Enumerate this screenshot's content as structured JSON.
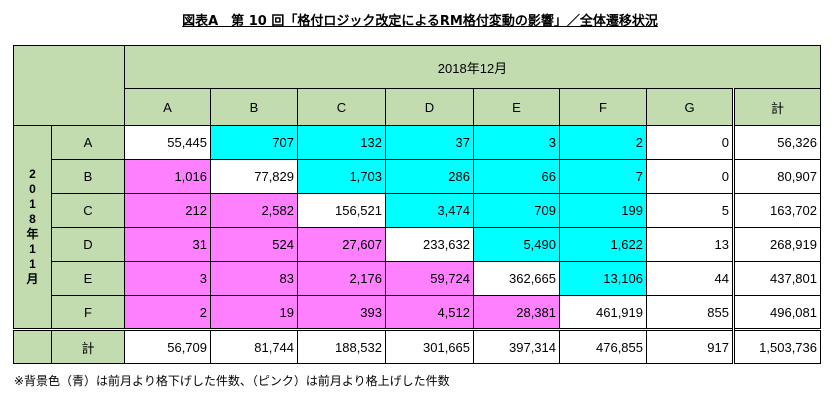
{
  "title": "図表A　第 10 回「格付ロジック改定によるRM格付変動の影響」／全体遷移状況",
  "header": {
    "period_col": "2018年12月",
    "period_row_chars": [
      "2",
      "0",
      "1",
      "8",
      "年",
      "1",
      "1",
      "月"
    ],
    "columns": [
      "A",
      "B",
      "C",
      "D",
      "E",
      "F",
      "G",
      "計"
    ]
  },
  "rows": [
    {
      "label": "A",
      "values": [
        "55,445",
        "707",
        "132",
        "37",
        "3",
        "2",
        "0",
        "56,326"
      ]
    },
    {
      "label": "B",
      "values": [
        "1,016",
        "77,829",
        "1,703",
        "286",
        "66",
        "7",
        "0",
        "80,907"
      ]
    },
    {
      "label": "C",
      "values": [
        "212",
        "2,582",
        "156,521",
        "3,474",
        "709",
        "199",
        "5",
        "163,702"
      ]
    },
    {
      "label": "D",
      "values": [
        "31",
        "524",
        "27,607",
        "233,632",
        "5,490",
        "1,622",
        "13",
        "268,919"
      ]
    },
    {
      "label": "E",
      "values": [
        "3",
        "83",
        "2,176",
        "59,724",
        "362,665",
        "13,106",
        "44",
        "437,801"
      ]
    },
    {
      "label": "F",
      "values": [
        "2",
        "19",
        "393",
        "4,512",
        "28,381",
        "461,919",
        "855",
        "496,081"
      ]
    }
  ],
  "total_row": {
    "label": "計",
    "values": [
      "56,709",
      "81,744",
      "188,532",
      "301,665",
      "397,314",
      "476,855",
      "917",
      "1,503,736"
    ]
  },
  "note": "※背景色（青）は前月より格下げした件数、（ピンク）は前月より格上げした件数",
  "colors": {
    "header_bg": "#c2dcb0",
    "downgrade": "#00ffff",
    "upgrade": "#ff80ff"
  }
}
